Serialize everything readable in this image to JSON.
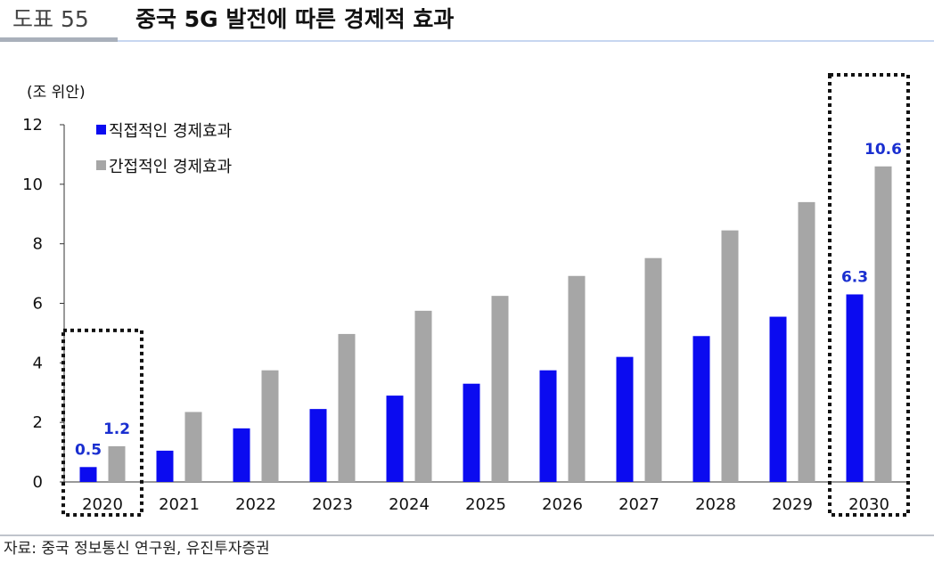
{
  "header": {
    "figure_label": "도표 55",
    "title": "중국 5G 발전에 따른 경제적 효과"
  },
  "footer": {
    "source": "자료: 중국 정보통신 연구원, 유진투자증권"
  },
  "colors": {
    "direct": "#0b0bf0",
    "indirect": "#a6a6a6",
    "label_blue": "#1a2fd0"
  },
  "chart_data": {
    "type": "bar",
    "ylabel": "(조 위안)",
    "ylim": [
      0,
      12
    ],
    "yticks": [
      "0",
      "2",
      "4",
      "6",
      "8",
      "10",
      "12"
    ],
    "categories": [
      "2020",
      "2021",
      "2022",
      "2023",
      "2024",
      "2025",
      "2026",
      "2027",
      "2028",
      "2029",
      "2030"
    ],
    "series": [
      {
        "name": "직접적인 경제효과",
        "values": [
          0.5,
          1.05,
          1.8,
          2.45,
          2.9,
          3.3,
          3.75,
          4.2,
          4.9,
          5.55,
          6.3
        ]
      },
      {
        "name": "간접적인 경제효과",
        "values": [
          1.2,
          2.35,
          3.75,
          4.97,
          5.75,
          6.25,
          6.92,
          7.52,
          8.45,
          9.4,
          10.6
        ]
      }
    ],
    "data_labels": [
      {
        "category": "2020",
        "direct": "0.5",
        "indirect": "1.2"
      },
      {
        "category": "2030",
        "direct": "6.3",
        "indirect": "10.6"
      }
    ],
    "highlighted_categories": [
      "2020",
      "2030"
    ],
    "legend_position": "top-left",
    "grid": false
  }
}
